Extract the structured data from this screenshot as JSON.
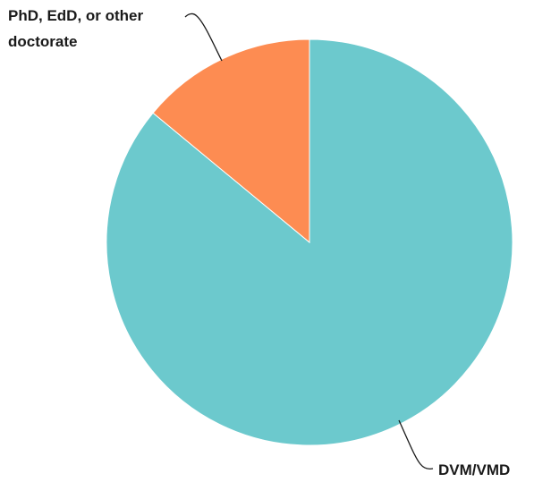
{
  "chart_data": {
    "type": "pie",
    "title": "",
    "legend": "none",
    "slices": [
      {
        "label": "DVM/VMD",
        "value": 86,
        "color": "#6cc9cd"
      },
      {
        "label": "PhD, EdD, or other doctorate",
        "value": 14,
        "color": "#fd8c52"
      }
    ],
    "label_lines": {
      "DVM/VMD": [
        "DVM/VMD"
      ],
      "PhD, EdD, or other doctorate": [
        "PhD, EdD, or other",
        "doctorate"
      ]
    }
  }
}
